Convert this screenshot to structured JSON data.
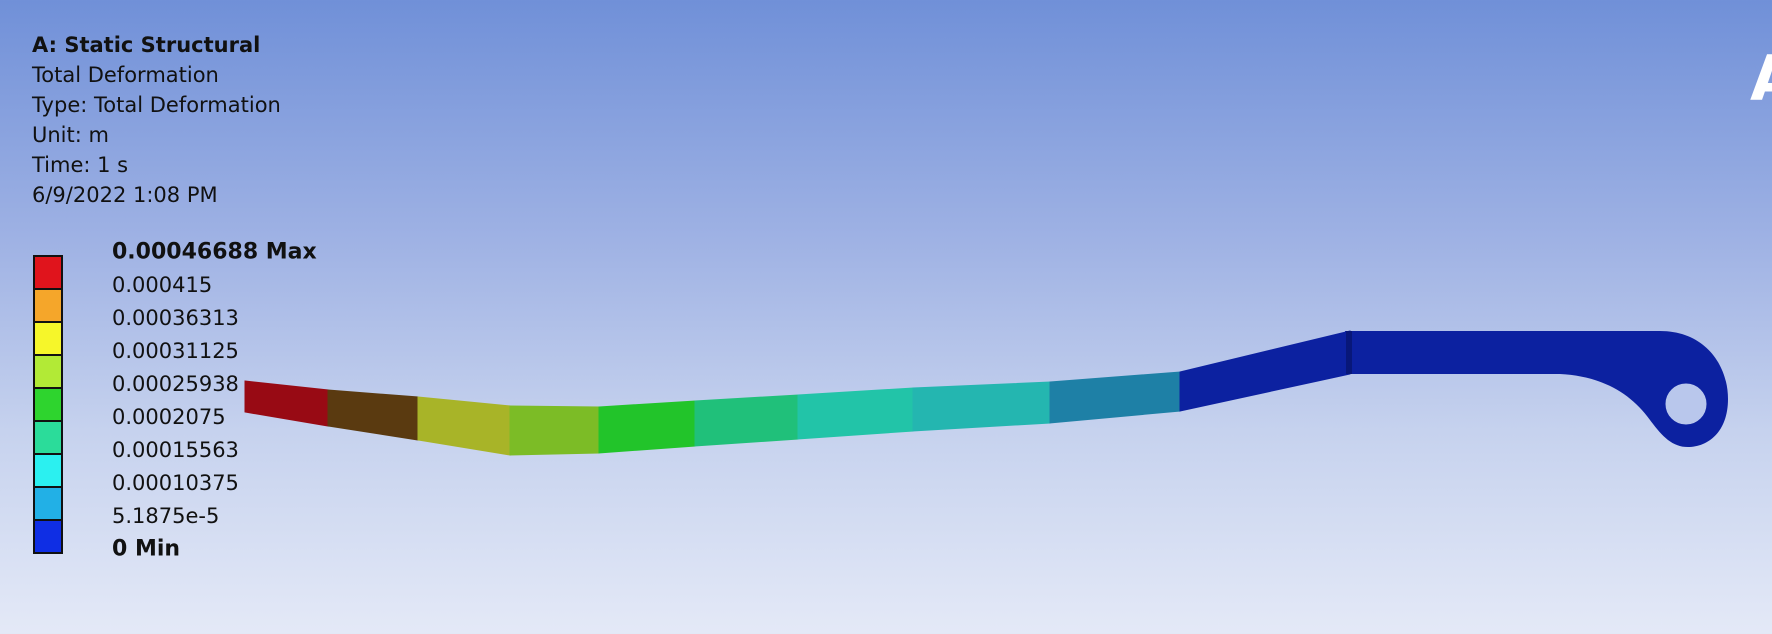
{
  "info": {
    "title": "A: Static Structural",
    "result_name": "Total Deformation",
    "type_line": "Type: Total Deformation",
    "unit_line": "Unit: m",
    "time_line": "Time: 1 s",
    "timestamp": "6/9/2022 1:08 PM"
  },
  "legend": {
    "max_label": "0.00046688 Max",
    "min_label": "0 Min",
    "intermediate_labels": [
      "0.000415",
      "0.00036313",
      "0.00031125",
      "0.00025938",
      "0.0002075",
      "0.00015563",
      "0.00010375",
      "5.1875e-5"
    ],
    "band_colors": [
      "#e0141c",
      "#f5a62a",
      "#f6f62a",
      "#b2ea36",
      "#2ed42e",
      "#2bdc9a",
      "#2bf0f0",
      "#22b0e6",
      "#0f2ee4"
    ]
  },
  "model": {
    "segment_colors": [
      "#980a14",
      "#5a3a10",
      "#a8b428",
      "#7cbc26",
      "#22c42a",
      "#20c07a",
      "#22c4a8",
      "#24b6b0",
      "#1e80a6",
      "#0c21a0"
    ],
    "end_color": "#0c21a0"
  },
  "corner_glyph": "A"
}
